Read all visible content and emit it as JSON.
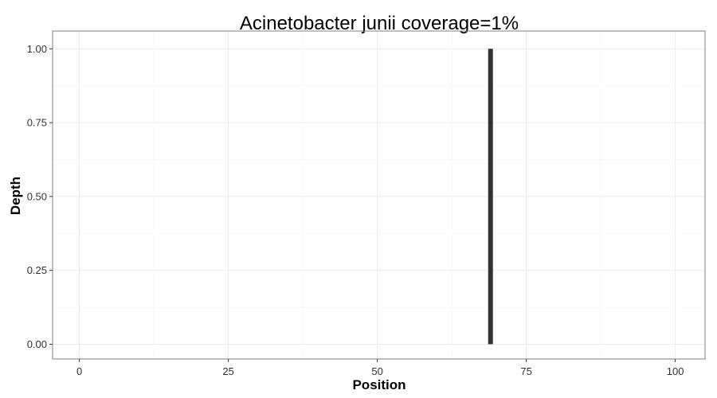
{
  "chart_data": {
    "type": "bar",
    "title": "Acinetobacter junii coverage=1%",
    "xlabel": "Position",
    "ylabel": "Depth",
    "xlim": [
      -4.5,
      105
    ],
    "ylim": [
      -0.05,
      1.06
    ],
    "x_ticks": [
      0,
      25,
      50,
      75,
      100
    ],
    "x_tick_labels": [
      "0",
      "25",
      "50",
      "75",
      "100"
    ],
    "y_ticks": [
      0,
      0.25,
      0.5,
      0.75,
      1
    ],
    "y_tick_labels": [
      "0.00",
      "0.25",
      "0.50",
      "0.75",
      "1.00"
    ],
    "grid": true,
    "legend": "none",
    "bar_color": "#333333",
    "x": [
      69
    ],
    "values": [
      1
    ]
  }
}
